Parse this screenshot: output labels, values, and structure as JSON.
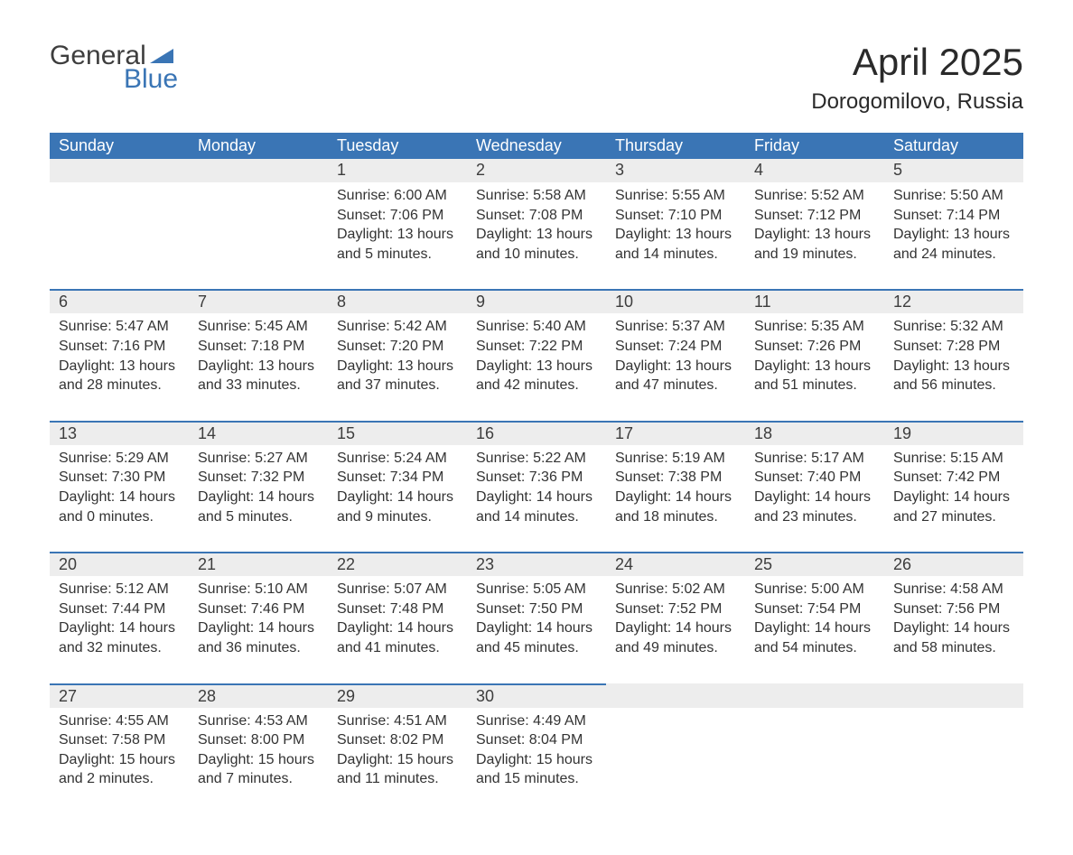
{
  "logo": {
    "general": "General",
    "blue": "Blue",
    "triangle_color": "#3a75b5"
  },
  "title": "April 2025",
  "subtitle": "Dorogomilovo, Russia",
  "colors": {
    "header_bg": "#3a75b5",
    "header_text": "#ffffff",
    "daynum_bg": "#ededed",
    "row_divider": "#3a75b5",
    "body_text": "#333333"
  },
  "daysOfWeek": [
    "Sunday",
    "Monday",
    "Tuesday",
    "Wednesday",
    "Thursday",
    "Friday",
    "Saturday"
  ],
  "weeks": [
    {
      "days": [
        {
          "empty": true
        },
        {
          "empty": true
        },
        {
          "num": "1",
          "sunrise": "Sunrise: 6:00 AM",
          "sunset": "Sunset: 7:06 PM",
          "dayl1": "Daylight: 13 hours",
          "dayl2": "and 5 minutes."
        },
        {
          "num": "2",
          "sunrise": "Sunrise: 5:58 AM",
          "sunset": "Sunset: 7:08 PM",
          "dayl1": "Daylight: 13 hours",
          "dayl2": "and 10 minutes."
        },
        {
          "num": "3",
          "sunrise": "Sunrise: 5:55 AM",
          "sunset": "Sunset: 7:10 PM",
          "dayl1": "Daylight: 13 hours",
          "dayl2": "and 14 minutes."
        },
        {
          "num": "4",
          "sunrise": "Sunrise: 5:52 AM",
          "sunset": "Sunset: 7:12 PM",
          "dayl1": "Daylight: 13 hours",
          "dayl2": "and 19 minutes."
        },
        {
          "num": "5",
          "sunrise": "Sunrise: 5:50 AM",
          "sunset": "Sunset: 7:14 PM",
          "dayl1": "Daylight: 13 hours",
          "dayl2": "and 24 minutes."
        }
      ]
    },
    {
      "days": [
        {
          "num": "6",
          "sunrise": "Sunrise: 5:47 AM",
          "sunset": "Sunset: 7:16 PM",
          "dayl1": "Daylight: 13 hours",
          "dayl2": "and 28 minutes."
        },
        {
          "num": "7",
          "sunrise": "Sunrise: 5:45 AM",
          "sunset": "Sunset: 7:18 PM",
          "dayl1": "Daylight: 13 hours",
          "dayl2": "and 33 minutes."
        },
        {
          "num": "8",
          "sunrise": "Sunrise: 5:42 AM",
          "sunset": "Sunset: 7:20 PM",
          "dayl1": "Daylight: 13 hours",
          "dayl2": "and 37 minutes."
        },
        {
          "num": "9",
          "sunrise": "Sunrise: 5:40 AM",
          "sunset": "Sunset: 7:22 PM",
          "dayl1": "Daylight: 13 hours",
          "dayl2": "and 42 minutes."
        },
        {
          "num": "10",
          "sunrise": "Sunrise: 5:37 AM",
          "sunset": "Sunset: 7:24 PM",
          "dayl1": "Daylight: 13 hours",
          "dayl2": "and 47 minutes."
        },
        {
          "num": "11",
          "sunrise": "Sunrise: 5:35 AM",
          "sunset": "Sunset: 7:26 PM",
          "dayl1": "Daylight: 13 hours",
          "dayl2": "and 51 minutes."
        },
        {
          "num": "12",
          "sunrise": "Sunrise: 5:32 AM",
          "sunset": "Sunset: 7:28 PM",
          "dayl1": "Daylight: 13 hours",
          "dayl2": "and 56 minutes."
        }
      ]
    },
    {
      "days": [
        {
          "num": "13",
          "sunrise": "Sunrise: 5:29 AM",
          "sunset": "Sunset: 7:30 PM",
          "dayl1": "Daylight: 14 hours",
          "dayl2": "and 0 minutes."
        },
        {
          "num": "14",
          "sunrise": "Sunrise: 5:27 AM",
          "sunset": "Sunset: 7:32 PM",
          "dayl1": "Daylight: 14 hours",
          "dayl2": "and 5 minutes."
        },
        {
          "num": "15",
          "sunrise": "Sunrise: 5:24 AM",
          "sunset": "Sunset: 7:34 PM",
          "dayl1": "Daylight: 14 hours",
          "dayl2": "and 9 minutes."
        },
        {
          "num": "16",
          "sunrise": "Sunrise: 5:22 AM",
          "sunset": "Sunset: 7:36 PM",
          "dayl1": "Daylight: 14 hours",
          "dayl2": "and 14 minutes."
        },
        {
          "num": "17",
          "sunrise": "Sunrise: 5:19 AM",
          "sunset": "Sunset: 7:38 PM",
          "dayl1": "Daylight: 14 hours",
          "dayl2": "and 18 minutes."
        },
        {
          "num": "18",
          "sunrise": "Sunrise: 5:17 AM",
          "sunset": "Sunset: 7:40 PM",
          "dayl1": "Daylight: 14 hours",
          "dayl2": "and 23 minutes."
        },
        {
          "num": "19",
          "sunrise": "Sunrise: 5:15 AM",
          "sunset": "Sunset: 7:42 PM",
          "dayl1": "Daylight: 14 hours",
          "dayl2": "and 27 minutes."
        }
      ]
    },
    {
      "days": [
        {
          "num": "20",
          "sunrise": "Sunrise: 5:12 AM",
          "sunset": "Sunset: 7:44 PM",
          "dayl1": "Daylight: 14 hours",
          "dayl2": "and 32 minutes."
        },
        {
          "num": "21",
          "sunrise": "Sunrise: 5:10 AM",
          "sunset": "Sunset: 7:46 PM",
          "dayl1": "Daylight: 14 hours",
          "dayl2": "and 36 minutes."
        },
        {
          "num": "22",
          "sunrise": "Sunrise: 5:07 AM",
          "sunset": "Sunset: 7:48 PM",
          "dayl1": "Daylight: 14 hours",
          "dayl2": "and 41 minutes."
        },
        {
          "num": "23",
          "sunrise": "Sunrise: 5:05 AM",
          "sunset": "Sunset: 7:50 PM",
          "dayl1": "Daylight: 14 hours",
          "dayl2": "and 45 minutes."
        },
        {
          "num": "24",
          "sunrise": "Sunrise: 5:02 AM",
          "sunset": "Sunset: 7:52 PM",
          "dayl1": "Daylight: 14 hours",
          "dayl2": "and 49 minutes."
        },
        {
          "num": "25",
          "sunrise": "Sunrise: 5:00 AM",
          "sunset": "Sunset: 7:54 PM",
          "dayl1": "Daylight: 14 hours",
          "dayl2": "and 54 minutes."
        },
        {
          "num": "26",
          "sunrise": "Sunrise: 4:58 AM",
          "sunset": "Sunset: 7:56 PM",
          "dayl1": "Daylight: 14 hours",
          "dayl2": "and 58 minutes."
        }
      ]
    },
    {
      "days": [
        {
          "num": "27",
          "sunrise": "Sunrise: 4:55 AM",
          "sunset": "Sunset: 7:58 PM",
          "dayl1": "Daylight: 15 hours",
          "dayl2": "and 2 minutes."
        },
        {
          "num": "28",
          "sunrise": "Sunrise: 4:53 AM",
          "sunset": "Sunset: 8:00 PM",
          "dayl1": "Daylight: 15 hours",
          "dayl2": "and 7 minutes."
        },
        {
          "num": "29",
          "sunrise": "Sunrise: 4:51 AM",
          "sunset": "Sunset: 8:02 PM",
          "dayl1": "Daylight: 15 hours",
          "dayl2": "and 11 minutes."
        },
        {
          "num": "30",
          "sunrise": "Sunrise: 4:49 AM",
          "sunset": "Sunset: 8:04 PM",
          "dayl1": "Daylight: 15 hours",
          "dayl2": "and 15 minutes."
        },
        {
          "empty": true
        },
        {
          "empty": true
        },
        {
          "empty": true
        }
      ]
    }
  ]
}
